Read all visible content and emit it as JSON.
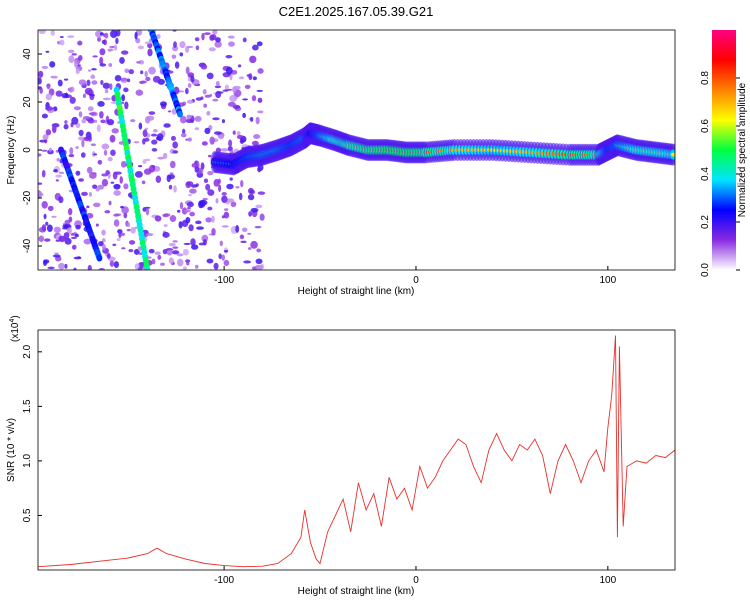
{
  "title": "C2E1.2025.167.05.39.G21",
  "chart_data": [
    {
      "type": "heatmap",
      "xlabel": "Height of straight line (km)",
      "ylabel": "Frequency (Hz)",
      "xlim": [
        -197,
        135
      ],
      "ylim": [
        -50,
        50
      ],
      "x_ticks": [
        -100,
        0,
        100
      ],
      "x_tick_labels": [
        "-100",
        "0",
        "100"
      ],
      "y_ticks": [
        -40,
        -20,
        0,
        20,
        40
      ],
      "y_tick_labels": [
        "-40",
        "-20",
        "0",
        "20",
        "40"
      ],
      "colorbar": {
        "label": "Normalized spectral amplitude",
        "range": [
          0,
          1
        ],
        "ticks": [
          0.0,
          0.2,
          0.4,
          0.6,
          0.8
        ],
        "tick_labels": [
          "0.0",
          "0.2",
          "0.4",
          "0.6",
          "0.8"
        ],
        "colormap": [
          "#ffffff",
          "#8a2be2",
          "#0000ff",
          "#00e5ff",
          "#00ff40",
          "#ffff00",
          "#ff8000",
          "#ff0000",
          "#ff0080"
        ]
      },
      "ridge": [
        {
          "x": -105,
          "y": -5,
          "amp": 0.4
        },
        {
          "x": -95,
          "y": -6,
          "amp": 0.45
        },
        {
          "x": -88,
          "y": -3,
          "amp": 0.5
        },
        {
          "x": -80,
          "y": -2,
          "amp": 0.55
        },
        {
          "x": -72,
          "y": 0,
          "amp": 0.55
        },
        {
          "x": -65,
          "y": 2,
          "amp": 0.5
        },
        {
          "x": -58,
          "y": 5,
          "amp": 0.55
        },
        {
          "x": -55,
          "y": 7,
          "amp": 0.45
        },
        {
          "x": -50,
          "y": 6,
          "amp": 0.55
        },
        {
          "x": -42,
          "y": 4,
          "amp": 0.7
        },
        {
          "x": -35,
          "y": 2,
          "amp": 0.75
        },
        {
          "x": -25,
          "y": 0,
          "amp": 0.8
        },
        {
          "x": -15,
          "y": 0,
          "amp": 0.85
        },
        {
          "x": -5,
          "y": -1,
          "amp": 0.85
        },
        {
          "x": 5,
          "y": -1,
          "amp": 0.8
        },
        {
          "x": 20,
          "y": 0,
          "amp": 0.7
        },
        {
          "x": 40,
          "y": 0,
          "amp": 0.65
        },
        {
          "x": 60,
          "y": -1,
          "amp": 0.7
        },
        {
          "x": 80,
          "y": -2,
          "amp": 0.8
        },
        {
          "x": 95,
          "y": -2,
          "amp": 0.75
        },
        {
          "x": 100,
          "y": 0,
          "amp": 0.5
        },
        {
          "x": 105,
          "y": 2,
          "amp": 0.55
        },
        {
          "x": 115,
          "y": 0,
          "amp": 0.7
        },
        {
          "x": 125,
          "y": -1,
          "amp": 0.7
        },
        {
          "x": 135,
          "y": -2,
          "amp": 0.65
        }
      ],
      "diagonal_tracks": [
        {
          "from": [
            -156,
            25
          ],
          "to": [
            -140,
            -50
          ],
          "amp": 0.45
        },
        {
          "from": [
            -138,
            50
          ],
          "to": [
            -123,
            15
          ],
          "amp": 0.3
        },
        {
          "from": [
            -185,
            0
          ],
          "to": [
            -165,
            -45
          ],
          "amp": 0.25
        }
      ]
    },
    {
      "type": "line",
      "xlabel": "Height of straight line (km)",
      "ylabel": "SNR (10 * v/v)",
      "y_multiplier_label": "(x10",
      "y_multiplier_exponent": "4",
      "y_multiplier_suffix": ")",
      "xlim": [
        -197,
        135
      ],
      "ylim": [
        0,
        22000
      ],
      "x_ticks": [
        -100,
        0,
        100
      ],
      "x_tick_labels": [
        "-100",
        "0",
        "100"
      ],
      "y_ticks": [
        5000,
        10000,
        15000,
        20000
      ],
      "y_tick_labels": [
        "0.5",
        "1.0",
        "1.5",
        "2.0"
      ],
      "color": "#e8302c",
      "series": [
        {
          "x": [
            -197,
            -180,
            -160,
            -150,
            -140,
            -135,
            -130,
            -120,
            -110,
            -100,
            -90,
            -80,
            -72,
            -65,
            -60,
            -58,
            -55,
            -52,
            -50,
            -46,
            -42,
            -38,
            -34,
            -30,
            -26,
            -22,
            -18,
            -14,
            -10,
            -6,
            -2,
            2,
            6,
            10,
            14,
            18,
            22,
            26,
            30,
            34,
            38,
            42,
            46,
            50,
            54,
            58,
            62,
            66,
            70,
            74,
            78,
            82,
            86,
            90,
            94,
            98,
            100,
            102,
            104,
            105,
            106,
            108,
            110,
            115,
            120,
            125,
            130,
            135
          ],
          "y": [
            300,
            500,
            900,
            1100,
            1500,
            2000,
            1500,
            1000,
            600,
            400,
            300,
            350,
            600,
            1500,
            3000,
            5500,
            2500,
            1000,
            600,
            3500,
            5000,
            6500,
            3500,
            8000,
            5500,
            7000,
            4000,
            8500,
            6500,
            7500,
            5500,
            9500,
            7500,
            8500,
            10000,
            11000,
            12000,
            11500,
            9500,
            8000,
            11000,
            12500,
            11000,
            10000,
            11500,
            11000,
            12000,
            10500,
            7000,
            10000,
            11500,
            10000,
            8000,
            10000,
            11000,
            9000,
            13000,
            16000,
            21500,
            3000,
            20500,
            4000,
            9500,
            10000,
            9800,
            10500,
            10300,
            11000
          ]
        }
      ]
    }
  ]
}
